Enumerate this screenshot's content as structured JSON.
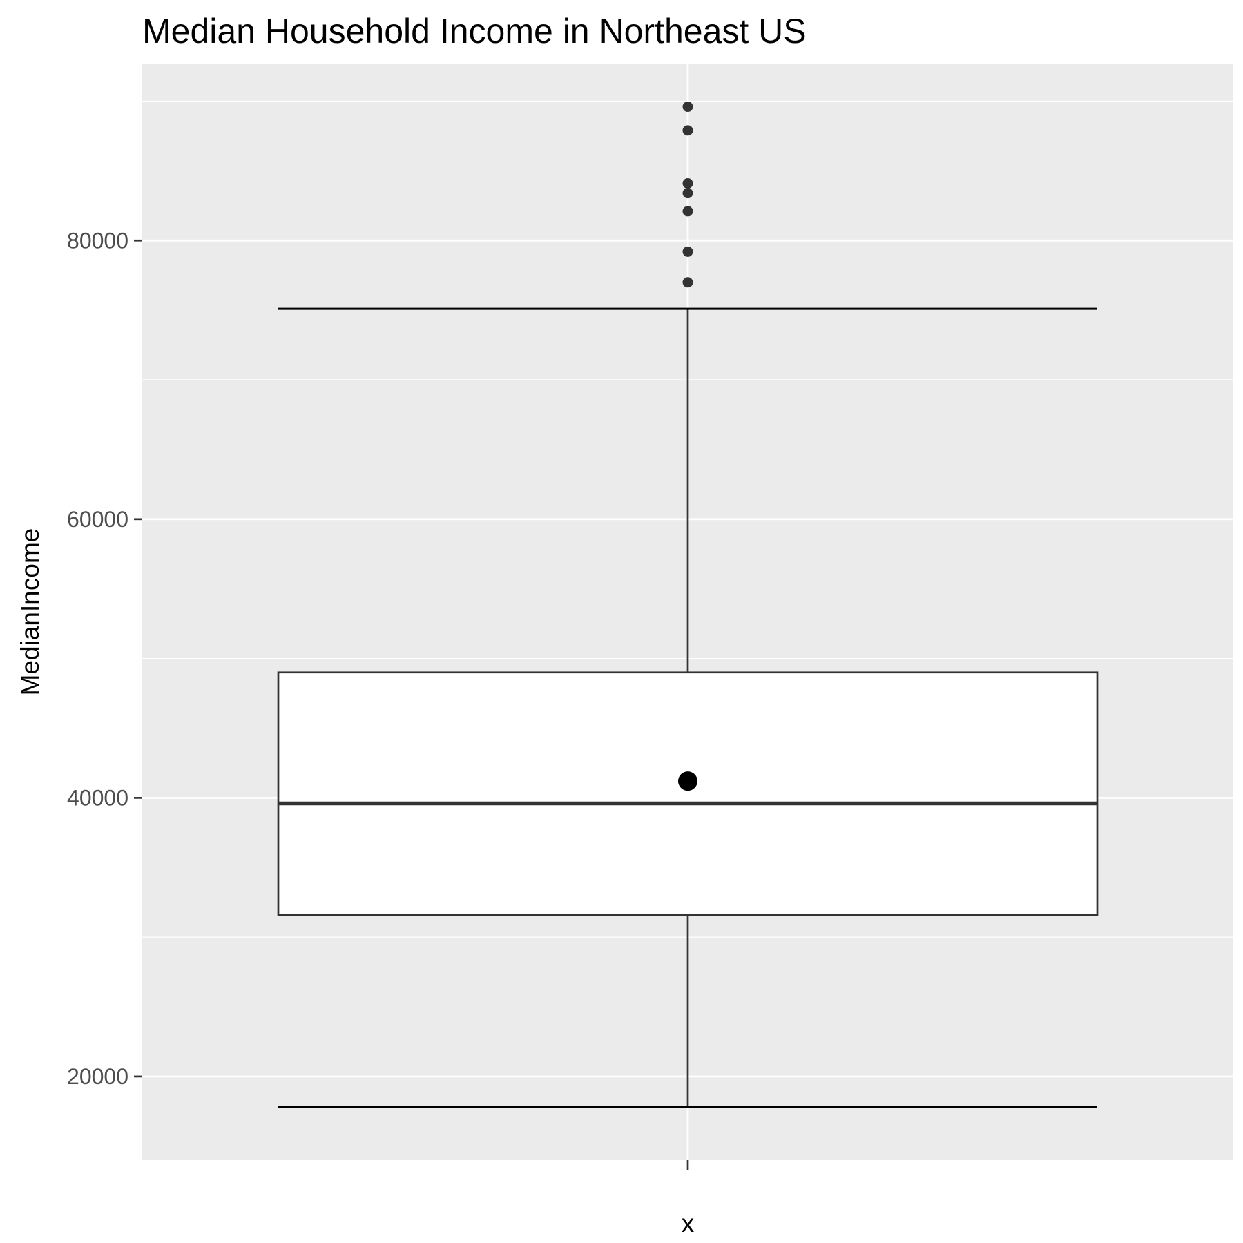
{
  "chart_data": {
    "type": "boxplot",
    "title": "Median Household Income in Northeast US",
    "xlabel": "x",
    "ylabel": "MedianIncome",
    "ylim": [
      14000,
      92700
    ],
    "y_ticks": [
      20000,
      40000,
      60000,
      80000
    ],
    "y_minor_ticks": [
      30000,
      50000,
      70000,
      90000
    ],
    "grid": true,
    "box": {
      "whisker_low": 17800,
      "q1": 31600,
      "median": 39600,
      "q3": 49000,
      "whisker_high": 75100,
      "mean": 41200
    },
    "outliers": [
      77000,
      79200,
      82100,
      83400,
      84100,
      87900,
      89600
    ],
    "colors": {
      "panel": "#ebebeb",
      "grid": "#ffffff",
      "box_fill": "#ffffff",
      "box_stroke": "#333333",
      "outlier": "#333333",
      "mean_point": "#000000",
      "tick_text": "#4d4d4d"
    }
  }
}
